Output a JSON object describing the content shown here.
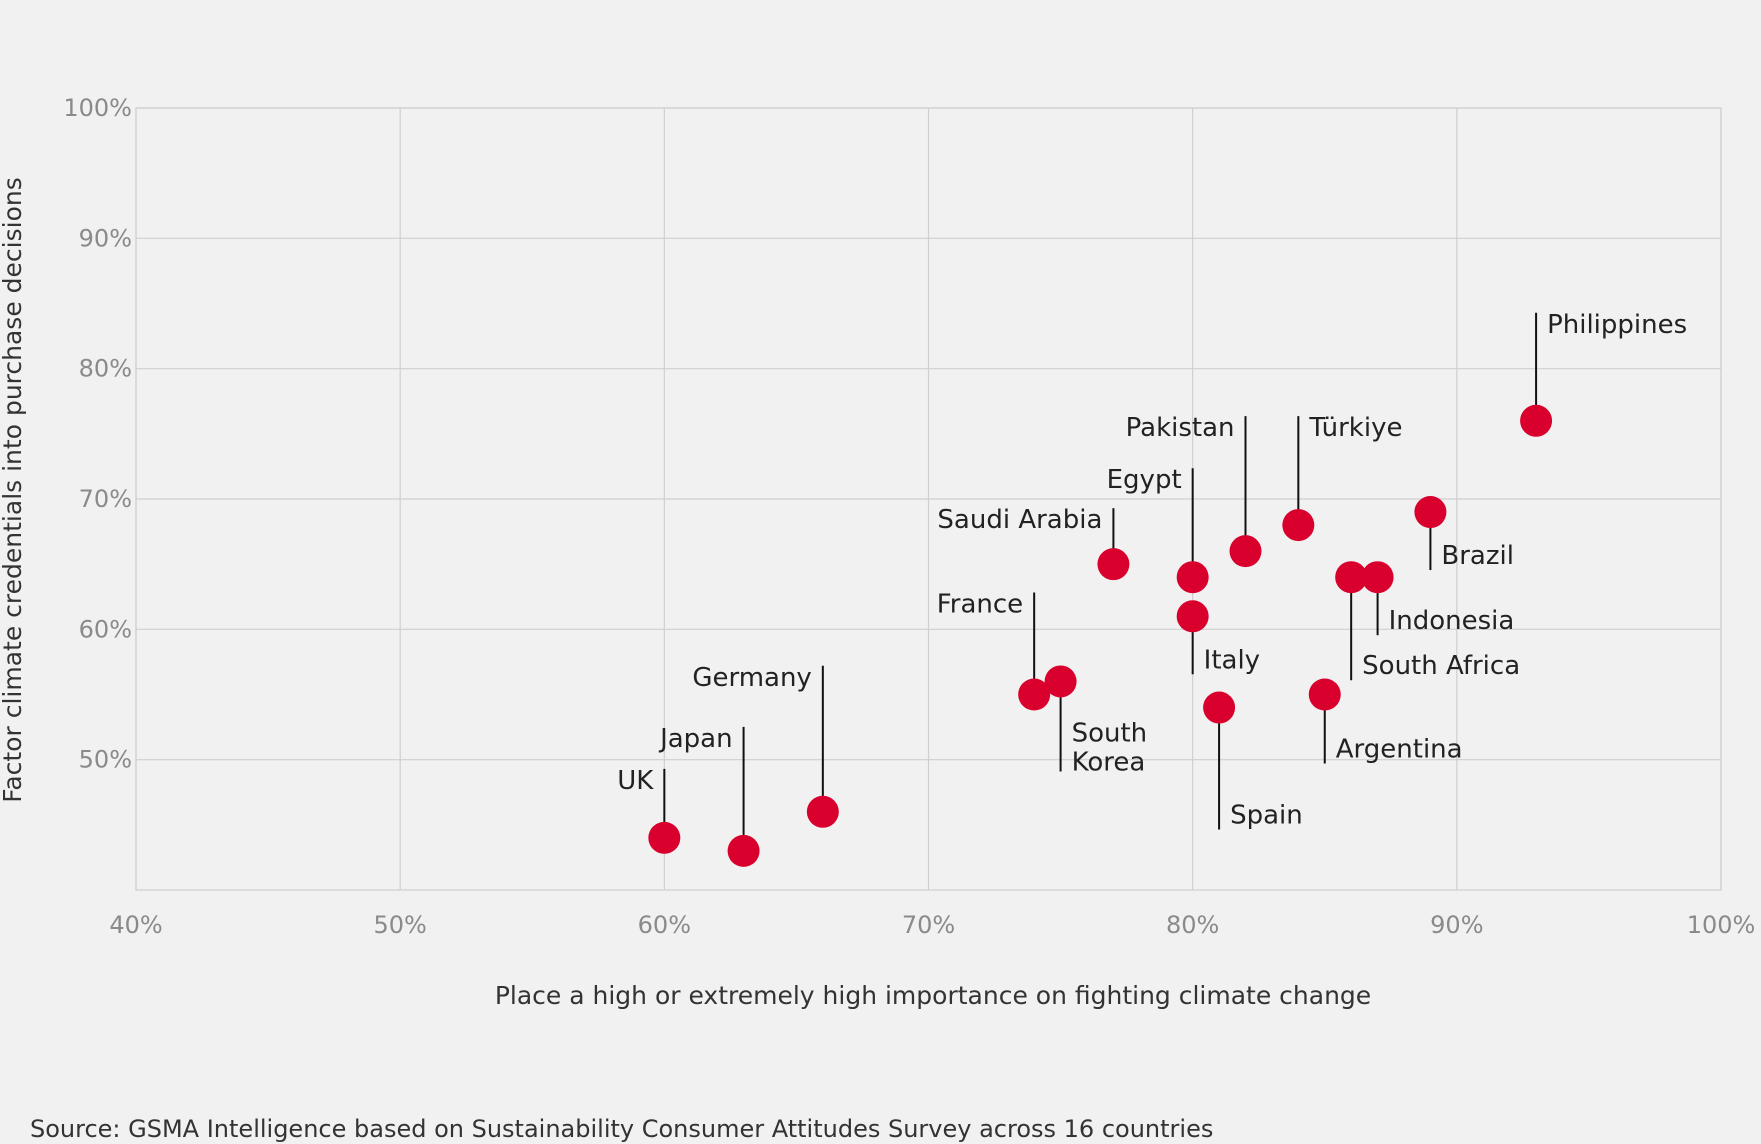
{
  "chart_data": {
    "type": "scatter",
    "xlabel": "Place a high or extremely high importance on fighting climate change",
    "ylabel": "Factor climate credentials into purchase decisions",
    "xlim": [
      40,
      100
    ],
    "ylim": [
      40,
      100
    ],
    "xticks": [
      "40%",
      "50%",
      "60%",
      "70%",
      "80%",
      "90%",
      "100%"
    ],
    "yticks": [
      "50%",
      "60%",
      "70%",
      "80%",
      "90%",
      "100%"
    ],
    "grid": true,
    "point_color": "#d9002d",
    "points": [
      {
        "label": "UK",
        "x": 60,
        "y": 44
      },
      {
        "label": "Japan",
        "x": 63,
        "y": 43
      },
      {
        "label": "Germany",
        "x": 66,
        "y": 46
      },
      {
        "label": "France",
        "x": 74,
        "y": 55
      },
      {
        "label": "South Korea",
        "x": 75,
        "y": 56
      },
      {
        "label": "Saudi Arabia",
        "x": 77,
        "y": 65
      },
      {
        "label": "Egypt",
        "x": 80,
        "y": 64
      },
      {
        "label": "Italy",
        "x": 80,
        "y": 61
      },
      {
        "label": "Spain",
        "x": 81,
        "y": 54
      },
      {
        "label": "Pakistan",
        "x": 82,
        "y": 66
      },
      {
        "label": "Türkiye",
        "x": 84,
        "y": 68
      },
      {
        "label": "Argentina",
        "x": 85,
        "y": 55
      },
      {
        "label": "South Africa",
        "x": 86,
        "y": 64
      },
      {
        "label": "Indonesia",
        "x": 87,
        "y": 64
      },
      {
        "label": "Brazil",
        "x": 89,
        "y": 69
      },
      {
        "label": "Philippines",
        "x": 93,
        "y": 76
      }
    ]
  },
  "source": "Source: GSMA Intelligence based on Sustainability Consumer Attitudes Survey across 16 countries"
}
